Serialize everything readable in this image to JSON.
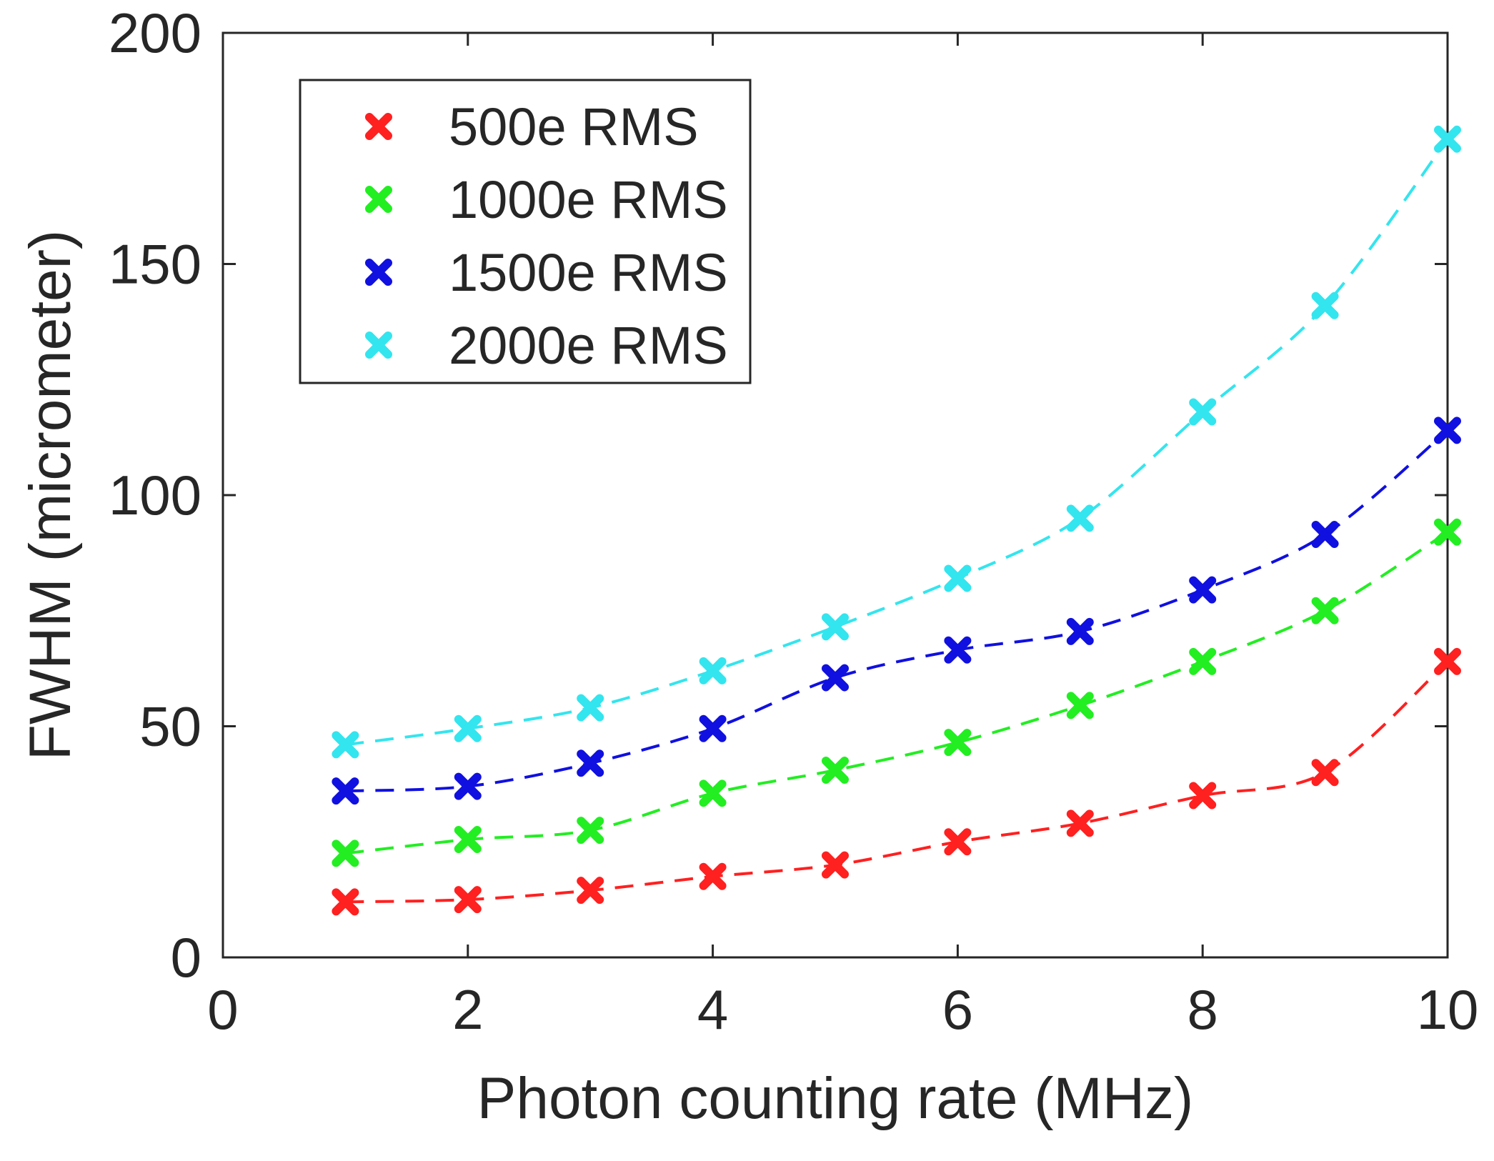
{
  "chart_data": {
    "type": "line",
    "title": "",
    "xlabel": "Photon counting rate (MHz)",
    "ylabel": "FWHM (micrometer)",
    "xlim": [
      0,
      10
    ],
    "ylim": [
      0,
      200
    ],
    "xticks": [
      0,
      2,
      4,
      6,
      8,
      10
    ],
    "yticks": [
      0,
      50,
      100,
      150,
      200
    ],
    "grid": false,
    "legend_position": "top-left",
    "marker": "x",
    "line_style": "dashed",
    "x": [
      1,
      2,
      3,
      4,
      5,
      6,
      7,
      8,
      9,
      10
    ],
    "series": [
      {
        "name": "500e RMS",
        "color": "#ff2020",
        "values": [
          12,
          12.5,
          14.5,
          17.5,
          20,
          25,
          29,
          35,
          40,
          64
        ]
      },
      {
        "name": "1000e RMS",
        "color": "#22ee22",
        "values": [
          22.5,
          25.5,
          27.5,
          35.5,
          40.5,
          46.5,
          54.5,
          64,
          75,
          92
        ]
      },
      {
        "name": "1500e RMS",
        "color": "#1010e0",
        "values": [
          36,
          37,
          42,
          49.5,
          60.5,
          66.5,
          70.5,
          79.5,
          91.5,
          114
        ]
      },
      {
        "name": "2000e RMS",
        "color": "#33e5ee",
        "values": [
          46,
          49.5,
          54,
          62,
          71.5,
          82,
          95,
          118,
          141,
          177
        ]
      }
    ]
  }
}
